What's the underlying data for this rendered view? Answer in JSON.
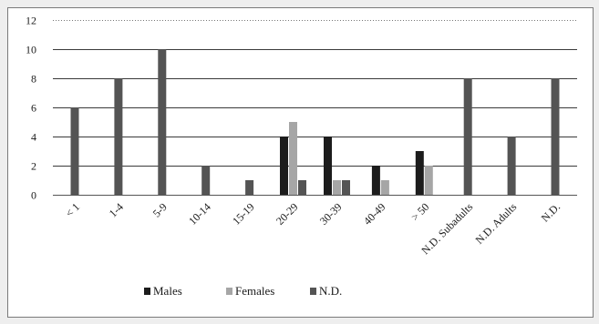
{
  "chart_data": {
    "type": "bar",
    "title": "",
    "xlabel": "",
    "ylabel": "",
    "ylim": [
      0,
      12
    ],
    "yticks": [
      0,
      2,
      4,
      6,
      8,
      10,
      12
    ],
    "grid": true,
    "legend_position": "bottom",
    "categories": [
      "< 1",
      "1-4",
      "5-9",
      "10-14",
      "15-19",
      "20-29",
      "30-39",
      "40-49",
      "> 50",
      "N.D. Subadults",
      "N.D. Adults",
      "N.D."
    ],
    "series": [
      {
        "name": "Males",
        "color": "#1c1c1c",
        "values": [
          0,
          0,
          0,
          0,
          0,
          4,
          4,
          2,
          3,
          0,
          0,
          0
        ]
      },
      {
        "name": "Females",
        "color": "#a6a6a6",
        "values": [
          0,
          0,
          0,
          0,
          0,
          5,
          1,
          1,
          2,
          0,
          0,
          0
        ]
      },
      {
        "name": "N.D.",
        "color": "#545454",
        "values": [
          6,
          8,
          10,
          2,
          1,
          1,
          1,
          0,
          0,
          8,
          4,
          8
        ]
      }
    ]
  }
}
